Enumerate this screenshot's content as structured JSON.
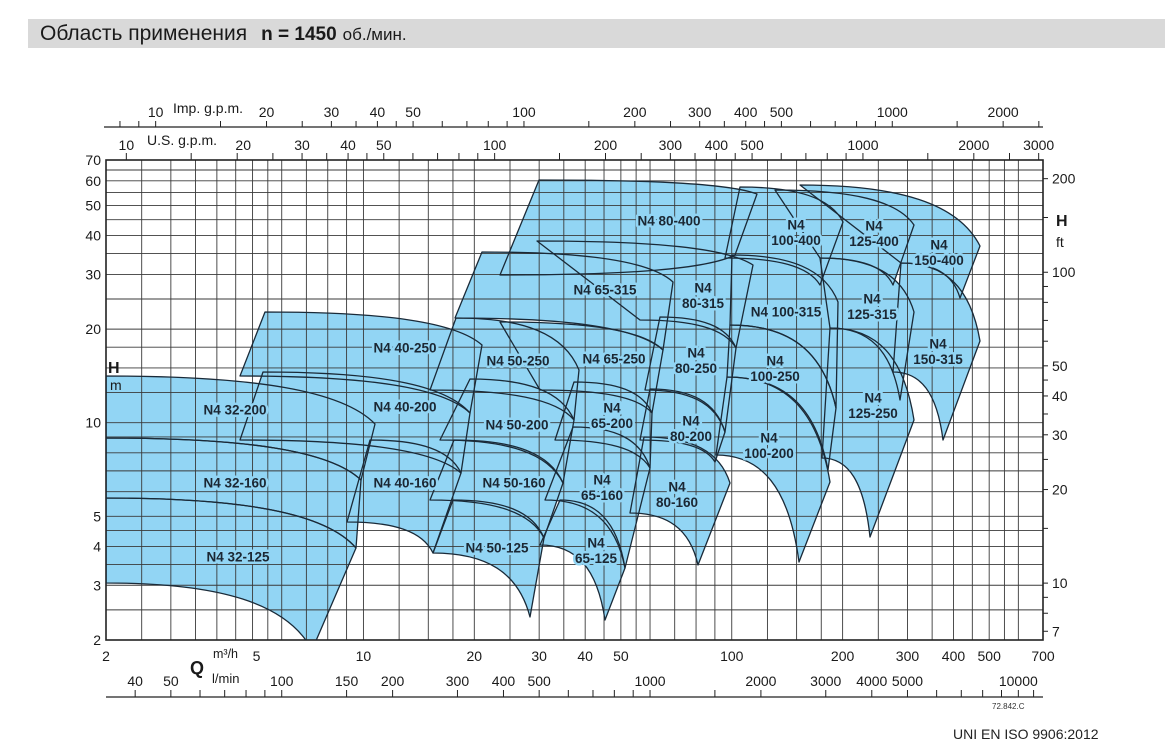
{
  "header": {
    "title": "Область применения",
    "speed": "n = 1450",
    "speed_unit": "об./мин."
  },
  "footer": {
    "drawing_code": "72.842.C",
    "standard": "UNI EN ISO 9906:2012"
  },
  "colors": {
    "region_fill": "#92d5f4",
    "region_stroke": "#1a2a38",
    "grid": "#3a3a3a",
    "title_bar": "#d9d9d9"
  },
  "chart_data": {
    "type": "area",
    "x_scale": "log",
    "y_scale": "log",
    "grid": true,
    "xlim": [
      2,
      700
    ],
    "ylim": [
      2,
      70
    ],
    "x_axis": {
      "symbol": "Q",
      "unit": "m³/h",
      "ticks": [
        2,
        5,
        10,
        20,
        30,
        40,
        50,
        100,
        200,
        300,
        400,
        500,
        700
      ]
    },
    "x_axis_lmin": {
      "unit": "l/min",
      "ticks": [
        40,
        50,
        100,
        150,
        200,
        300,
        400,
        500,
        1000,
        2000,
        3000,
        4000,
        5000,
        10000
      ]
    },
    "x_axis_us_gpm": {
      "unit": "U.S. g.p.m.",
      "ticks": [
        10,
        20,
        30,
        40,
        50,
        100,
        200,
        300,
        400,
        500,
        1000,
        2000,
        3000
      ]
    },
    "x_axis_imp_gpm": {
      "unit": "Imp. g.p.m.",
      "ticks": [
        10,
        20,
        30,
        40,
        50,
        100,
        200,
        300,
        400,
        500,
        1000,
        2000
      ]
    },
    "y_axis": {
      "symbol": "H",
      "unit": "m",
      "ticks": [
        2,
        3,
        4,
        5,
        10,
        20,
        30,
        40,
        50,
        60,
        70
      ]
    },
    "y_axis_ft": {
      "symbol": "H",
      "unit": "ft",
      "ticks": [
        7,
        10,
        20,
        30,
        40,
        50,
        100,
        200
      ]
    },
    "regions": [
      {
        "name": "N4 32-200"
      },
      {
        "name": "N4 32-160"
      },
      {
        "name": "N4 32-125"
      },
      {
        "name": "N4 40-250"
      },
      {
        "name": "N4 40-200"
      },
      {
        "name": "N4 40-160"
      },
      {
        "name": "N4 50-250"
      },
      {
        "name": "N4 50-200"
      },
      {
        "name": "N4 50-160"
      },
      {
        "name": "N4 50-125"
      },
      {
        "name": "N4 65-315"
      },
      {
        "name": "N4 65-250"
      },
      {
        "name": "N4 65-200"
      },
      {
        "name": "N4 65-160"
      },
      {
        "name": "N4 65-125"
      },
      {
        "name": "N4 80-400"
      },
      {
        "name": "N4 80-315"
      },
      {
        "name": "N4 80-250"
      },
      {
        "name": "N4 80-200"
      },
      {
        "name": "N4 80-160"
      },
      {
        "name": "N4 100-400"
      },
      {
        "name": "N4 100-315"
      },
      {
        "name": "N4 100-250"
      },
      {
        "name": "N4 100-200"
      },
      {
        "name": "N4 125-400"
      },
      {
        "name": "N4 125-315"
      },
      {
        "name": "N4 125-250"
      },
      {
        "name": "N4 150-400"
      },
      {
        "name": "N4 150-315"
      }
    ]
  }
}
